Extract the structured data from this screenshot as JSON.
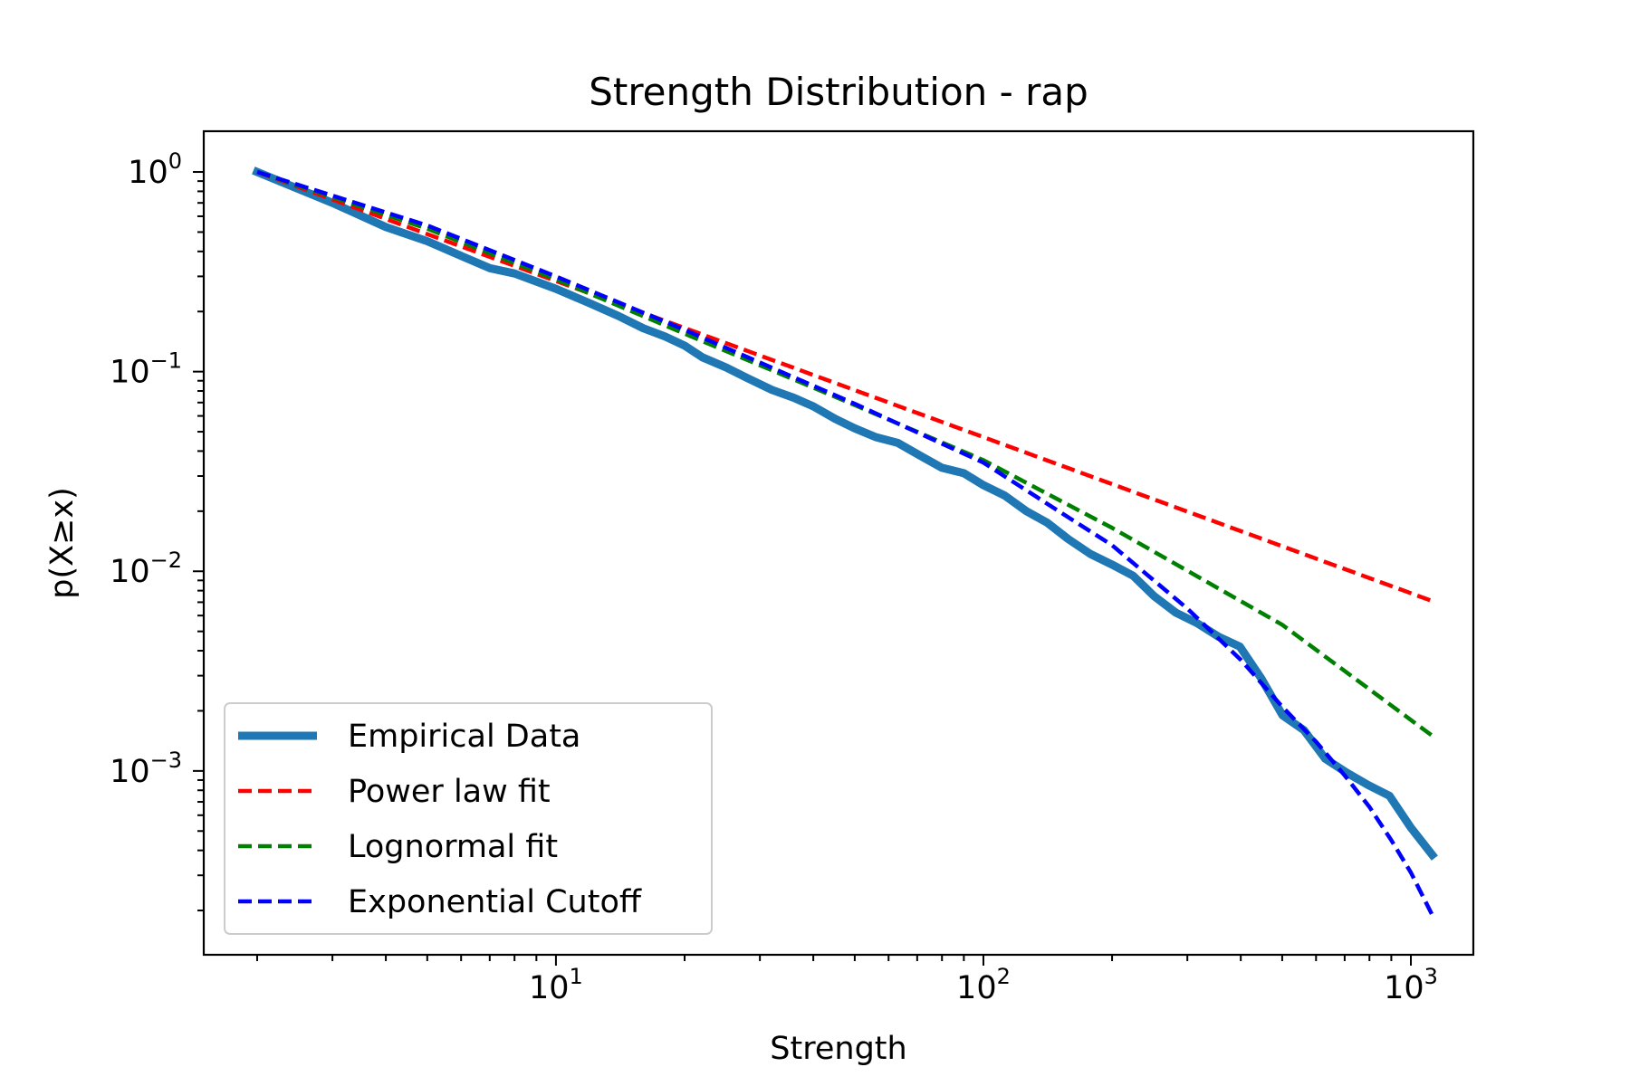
{
  "chart_data": {
    "type": "line",
    "title": "Strength Distribution - rap",
    "xlabel": "Strength",
    "ylabel": "p(X≥x)",
    "xscale": "log",
    "yscale": "log",
    "xlim": [
      1.5,
      1400
    ],
    "ylim": [
      0.00012,
      1.6
    ],
    "grid": false,
    "legend_placement": "lower-left",
    "x_ticks": [
      {
        "value": 10,
        "base": "10",
        "exp": "1"
      },
      {
        "value": 100,
        "base": "10",
        "exp": "2"
      },
      {
        "value": 1000,
        "base": "10",
        "exp": "3"
      }
    ],
    "y_ticks": [
      {
        "value": 1,
        "base": "10",
        "exp": "0"
      },
      {
        "value": 0.1,
        "base": "10",
        "exp": "−1"
      },
      {
        "value": 0.01,
        "base": "10",
        "exp": "−2"
      },
      {
        "value": 0.001,
        "base": "10",
        "exp": "−3"
      }
    ],
    "series": [
      {
        "name": "Empirical Data",
        "color": "#1f77b4",
        "style": "solid",
        "x": [
          2,
          3,
          4,
          5,
          6,
          7,
          8,
          10,
          12,
          14,
          16,
          18,
          20,
          22,
          25,
          28,
          32,
          36,
          40,
          45,
          50,
          56,
          63,
          71,
          80,
          90,
          100,
          112,
          126,
          141,
          158,
          178,
          200,
          224,
          251,
          282,
          316,
          355,
          398,
          447,
          501,
          562,
          631,
          708,
          794,
          891,
          1000,
          1122
        ],
        "y": [
          1.0,
          0.7,
          0.53,
          0.45,
          0.38,
          0.33,
          0.31,
          0.26,
          0.22,
          0.19,
          0.165,
          0.15,
          0.135,
          0.118,
          0.105,
          0.093,
          0.081,
          0.074,
          0.067,
          0.058,
          0.052,
          0.047,
          0.044,
          0.038,
          0.033,
          0.031,
          0.027,
          0.024,
          0.02,
          0.0175,
          0.0145,
          0.0122,
          0.0108,
          0.0095,
          0.0075,
          0.0062,
          0.0055,
          0.0047,
          0.0042,
          0.0029,
          0.0019,
          0.0016,
          0.00115,
          0.00098,
          0.00085,
          0.00075,
          0.00052,
          0.00038
        ]
      },
      {
        "name": "Power law fit",
        "color": "#ff0000",
        "style": "dashed",
        "x": [
          2,
          1122
        ],
        "y": [
          1.0,
          0.0071
        ]
      },
      {
        "name": "Lognormal fit",
        "color": "#008000",
        "style": "dashed",
        "x": [
          2,
          5,
          10,
          20,
          50,
          100,
          200,
          500,
          1122
        ],
        "y": [
          1.0,
          0.52,
          0.29,
          0.155,
          0.068,
          0.036,
          0.0165,
          0.0054,
          0.0015
        ]
      },
      {
        "name": "Exponential Cutoff",
        "color": "#0000ff",
        "style": "dashed",
        "x": [
          2,
          5,
          10,
          20,
          50,
          100,
          150,
          200,
          300,
          400,
          500,
          600,
          700,
          800,
          900,
          1000,
          1122
        ],
        "y": [
          1.0,
          0.54,
          0.3,
          0.162,
          0.069,
          0.035,
          0.02,
          0.0135,
          0.0065,
          0.0036,
          0.0021,
          0.0014,
          0.00095,
          0.00066,
          0.00045,
          0.00031,
          0.00019
        ]
      }
    ]
  }
}
